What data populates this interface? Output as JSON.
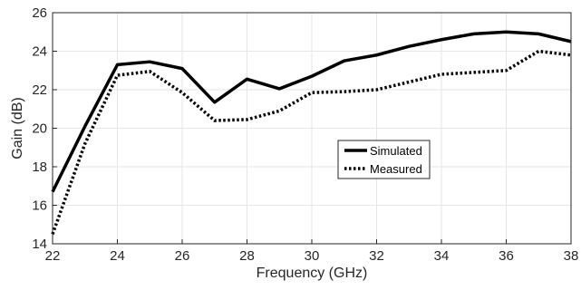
{
  "chart_data": {
    "type": "line",
    "xlabel": "Frequency (GHz)",
    "ylabel": "Gain (dB)",
    "xlim": [
      22,
      38
    ],
    "ylim": [
      14,
      26
    ],
    "xticks": [
      22,
      24,
      26,
      28,
      30,
      32,
      34,
      36,
      38
    ],
    "yticks": [
      14,
      16,
      18,
      20,
      22,
      24,
      26
    ],
    "grid": true,
    "legend_position": "center-right",
    "x": [
      22,
      23,
      24,
      25,
      26,
      27,
      28,
      29,
      30,
      31,
      32,
      33,
      34,
      35,
      36,
      37,
      38
    ],
    "series": [
      {
        "name": "Simulated",
        "style": "solid",
        "color": "#000000",
        "values": [
          16.7,
          20.1,
          23.3,
          23.45,
          23.1,
          21.35,
          22.55,
          22.05,
          22.7,
          23.5,
          23.8,
          24.25,
          24.6,
          24.9,
          25.0,
          24.9,
          24.5
        ]
      },
      {
        "name": "Measured",
        "style": "dotted",
        "color": "#000000",
        "values": [
          14.5,
          19.2,
          22.75,
          22.95,
          21.85,
          20.4,
          20.45,
          20.9,
          21.85,
          21.9,
          22.0,
          22.4,
          22.8,
          22.9,
          23.0,
          24.0,
          23.8
        ]
      }
    ]
  }
}
